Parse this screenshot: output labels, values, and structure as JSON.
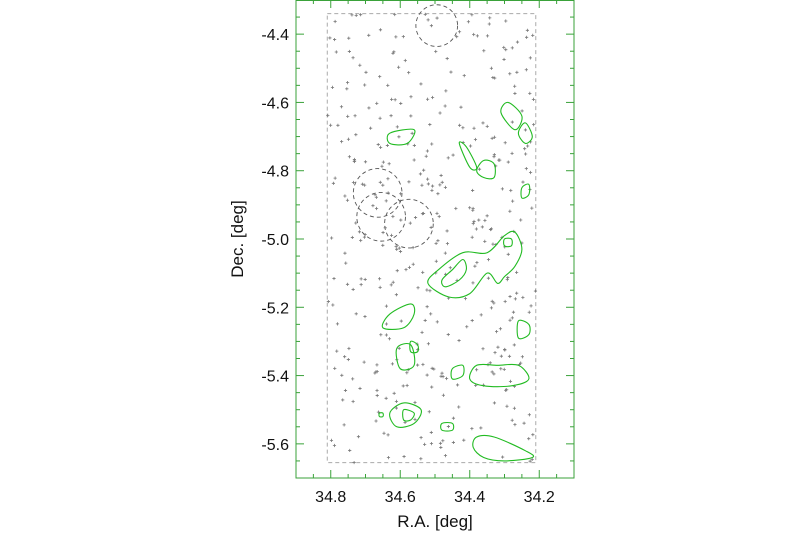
{
  "chart_data": {
    "type": "scatter",
    "title": "",
    "xlabel": "R.A. [deg]",
    "ylabel": "Dec. [deg]",
    "xlim": [
      34.9,
      34.1
    ],
    "ylim": [
      -5.7,
      -4.3
    ],
    "x_reversed": true,
    "x_ticks": [
      "34.8",
      "34.6",
      "34.4",
      "34.2"
    ],
    "y_ticks": [
      "-4.4",
      "-4.6",
      "-4.8",
      "-5.0",
      "-5.2",
      "-5.4",
      "-5.6"
    ],
    "grid": false,
    "legend": "none",
    "colors": {
      "frame": "#3aa23a",
      "contour": "#22bb22",
      "points": "#777777",
      "footprint": "#aaaaaa",
      "masks": "#555555"
    },
    "survey_footprint": {
      "ra": [
        34.81,
        34.21
      ],
      "dec": [
        -5.655,
        -4.34
      ]
    },
    "masked_regions": [
      {
        "ra": 34.495,
        "dec": -4.375,
        "r": 0.06
      },
      {
        "ra": 34.665,
        "dec": -4.865,
        "r": 0.07
      },
      {
        "ra": 34.655,
        "dec": -4.935,
        "r": 0.07
      },
      {
        "ra": 34.575,
        "dec": -4.955,
        "r": 0.07
      }
    ],
    "overdensity_contours": [
      {
        "level": "outer",
        "points": [
          [
            34.63,
            -4.69
          ],
          [
            34.56,
            -4.68
          ],
          [
            34.58,
            -4.72
          ],
          [
            34.63,
            -4.72
          ]
        ]
      },
      {
        "level": "outer",
        "points": [
          [
            34.29,
            -4.6
          ],
          [
            34.25,
            -4.64
          ],
          [
            34.27,
            -4.68
          ],
          [
            34.31,
            -4.63
          ]
        ]
      },
      {
        "level": "outer",
        "points": [
          [
            34.24,
            -4.66
          ],
          [
            34.22,
            -4.7
          ],
          [
            34.24,
            -4.72
          ],
          [
            34.26,
            -4.69
          ]
        ]
      },
      {
        "level": "outer",
        "points": [
          [
            34.43,
            -4.72
          ],
          [
            34.4,
            -4.79
          ],
          [
            34.38,
            -4.79
          ],
          [
            34.41,
            -4.73
          ]
        ]
      },
      {
        "level": "outer",
        "points": [
          [
            34.36,
            -4.77
          ],
          [
            34.33,
            -4.78
          ],
          [
            34.33,
            -4.82
          ],
          [
            34.36,
            -4.82
          ],
          [
            34.38,
            -4.8
          ]
        ]
      },
      {
        "level": "outer",
        "points": [
          [
            34.25,
            -4.85
          ],
          [
            34.23,
            -4.84
          ],
          [
            34.23,
            -4.87
          ],
          [
            34.25,
            -4.88
          ]
        ]
      },
      {
        "level": "outer",
        "points": [
          [
            34.35,
            -5.04
          ],
          [
            34.3,
            -4.99
          ],
          [
            34.27,
            -4.98
          ],
          [
            34.25,
            -5.03
          ],
          [
            34.27,
            -5.08
          ],
          [
            34.3,
            -5.11
          ],
          [
            34.32,
            -5.13
          ],
          [
            34.35,
            -5.1
          ],
          [
            34.4,
            -5.16
          ],
          [
            34.46,
            -5.17
          ],
          [
            34.52,
            -5.13
          ],
          [
            34.49,
            -5.09
          ],
          [
            34.42,
            -5.04
          ]
        ]
      },
      {
        "level": "inner",
        "points": [
          [
            34.42,
            -5.06
          ],
          [
            34.45,
            -5.09
          ],
          [
            34.48,
            -5.12
          ],
          [
            34.47,
            -5.14
          ],
          [
            34.43,
            -5.12
          ],
          [
            34.41,
            -5.09
          ]
        ]
      },
      {
        "level": "inner",
        "points": [
          [
            34.3,
            -5.0
          ],
          [
            34.28,
            -5.0
          ],
          [
            34.28,
            -5.02
          ],
          [
            34.3,
            -5.02
          ]
        ]
      },
      {
        "level": "outer",
        "points": [
          [
            34.63,
            -5.22
          ],
          [
            34.57,
            -5.19
          ],
          [
            34.56,
            -5.22
          ],
          [
            34.59,
            -5.26
          ],
          [
            34.65,
            -5.26
          ]
        ]
      },
      {
        "level": "outer",
        "points": [
          [
            34.26,
            -5.24
          ],
          [
            34.23,
            -5.25
          ],
          [
            34.23,
            -5.28
          ],
          [
            34.26,
            -5.29
          ]
        ]
      },
      {
        "level": "outer",
        "points": [
          [
            34.57,
            -5.3
          ],
          [
            34.55,
            -5.31
          ],
          [
            34.55,
            -5.33
          ],
          [
            34.57,
            -5.33
          ]
        ]
      },
      {
        "level": "outer",
        "points": [
          [
            34.61,
            -5.32
          ],
          [
            34.57,
            -5.31
          ],
          [
            34.56,
            -5.37
          ],
          [
            34.6,
            -5.38
          ]
        ]
      },
      {
        "level": "outer",
        "points": [
          [
            34.45,
            -5.38
          ],
          [
            34.42,
            -5.37
          ],
          [
            34.42,
            -5.4
          ],
          [
            34.45,
            -5.41
          ]
        ]
      },
      {
        "level": "outer",
        "points": [
          [
            34.38,
            -5.37
          ],
          [
            34.32,
            -5.37
          ],
          [
            34.26,
            -5.37
          ],
          [
            34.23,
            -5.41
          ],
          [
            34.28,
            -5.43
          ],
          [
            34.36,
            -5.43
          ],
          [
            34.4,
            -5.41
          ]
        ]
      },
      {
        "level": "outer",
        "points": [
          [
            34.63,
            -5.51
          ],
          [
            34.59,
            -5.48
          ],
          [
            34.54,
            -5.5
          ],
          [
            34.56,
            -5.54
          ],
          [
            34.61,
            -5.55
          ]
        ]
      },
      {
        "level": "inner",
        "points": [
          [
            34.59,
            -5.5
          ],
          [
            34.56,
            -5.51
          ],
          [
            34.57,
            -5.53
          ],
          [
            34.59,
            -5.53
          ]
        ]
      },
      {
        "level": "outer",
        "points": [
          [
            34.66,
            -5.51
          ],
          [
            34.65,
            -5.51
          ],
          [
            34.65,
            -5.52
          ],
          [
            34.66,
            -5.52
          ]
        ]
      },
      {
        "level": "outer",
        "points": [
          [
            34.48,
            -5.54
          ],
          [
            34.45,
            -5.54
          ],
          [
            34.45,
            -5.56
          ],
          [
            34.48,
            -5.56
          ]
        ]
      },
      {
        "level": "outer",
        "points": [
          [
            34.38,
            -5.58
          ],
          [
            34.33,
            -5.58
          ],
          [
            34.24,
            -5.62
          ],
          [
            34.22,
            -5.64
          ],
          [
            34.3,
            -5.65
          ],
          [
            34.36,
            -5.64
          ],
          [
            34.39,
            -5.61
          ]
        ]
      }
    ],
    "galaxy_count_estimated": 420
  }
}
